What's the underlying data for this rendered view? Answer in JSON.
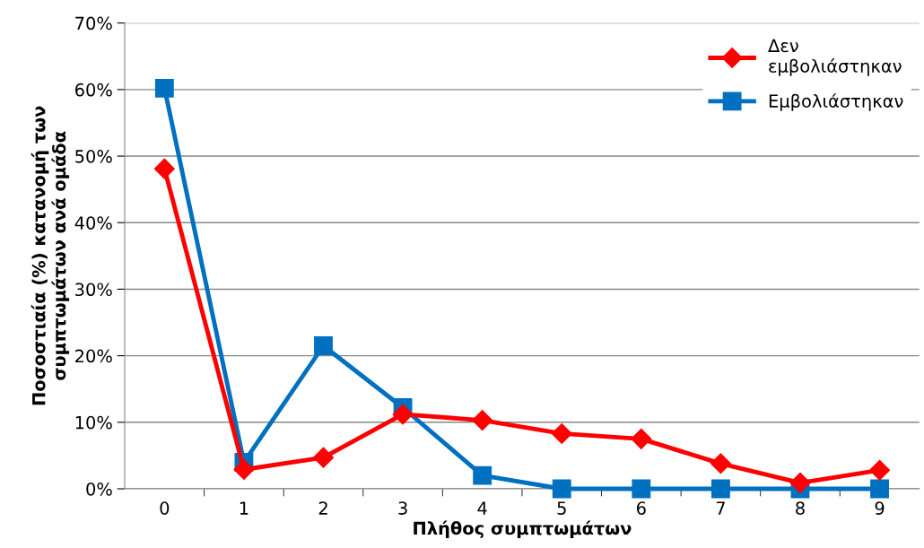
{
  "chart_data": {
    "type": "line",
    "xlabel": "Πλήθος συμπτωμάτων",
    "ylabel": "Ποσοστιαία (%) κατανομή των\nσυμπτωμάτων ανά ομάδα",
    "categories": [
      "0",
      "1",
      "2",
      "3",
      "4",
      "5",
      "6",
      "7",
      "8",
      "9"
    ],
    "series": [
      {
        "name": "Δεν\nεμβολιάστηκαν",
        "color": "#ff0000",
        "marker": "diamond",
        "values": [
          48.1,
          2.9,
          4.7,
          11.2,
          10.3,
          8.3,
          7.5,
          3.8,
          0.9,
          2.8
        ]
      },
      {
        "name": "Εμβολιάστηκαν",
        "color": "#0070c0",
        "marker": "square",
        "values": [
          60.2,
          4.0,
          21.5,
          12.2,
          2.0,
          0,
          0,
          0,
          0,
          0
        ]
      }
    ],
    "ylim": [
      0,
      70
    ],
    "yticks": [
      {
        "value": 0,
        "label": "0%"
      },
      {
        "value": 10,
        "label": "10%"
      },
      {
        "value": 20,
        "label": "20%"
      },
      {
        "value": 30,
        "label": "30%"
      },
      {
        "value": 40,
        "label": "40%"
      },
      {
        "value": 50,
        "label": "50%"
      },
      {
        "value": 60,
        "label": "60%"
      },
      {
        "value": 70,
        "label": "70%"
      }
    ],
    "grid": "y",
    "legend": "top right"
  }
}
